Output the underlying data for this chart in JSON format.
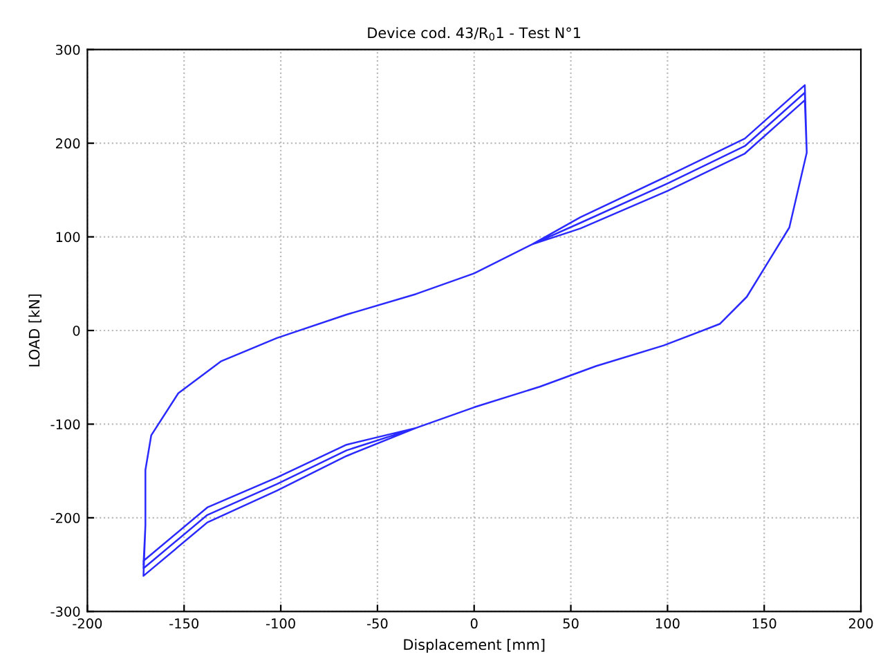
{
  "chart_data": {
    "type": "line",
    "title": "Device cod. 43/R$_{0}$1 - Test N°1",
    "xlabel": "Displacement [mm]",
    "ylabel": "LOAD [kN]",
    "xlim": [
      -200,
      200
    ],
    "xticks": [
      -200,
      -150,
      -100,
      -50,
      0,
      50,
      100,
      150,
      200
    ],
    "ylim": [
      -300,
      300
    ],
    "yticks": [
      -300,
      -200,
      -100,
      0,
      100,
      200,
      300
    ],
    "grid": true,
    "line_style": "solid",
    "marker": "none",
    "series": [
      {
        "color": "#2a2aff",
        "x": [
          -171,
          -170,
          -170,
          -167,
          -153,
          -131,
          -102,
          -66,
          -30,
          0,
          30,
          55,
          100,
          140,
          171,
          172,
          163,
          152,
          141,
          127,
          98,
          63,
          34,
          0,
          -30,
          -66,
          -102,
          -138,
          -171,
          -170,
          -170,
          -167,
          -153,
          -131,
          -102,
          -66,
          -30,
          0,
          30,
          55,
          100,
          140,
          171,
          172,
          163,
          152,
          141,
          127,
          98,
          63,
          34,
          0,
          -30,
          -66,
          -102,
          -138,
          -171,
          -170,
          -170,
          -167,
          -153,
          -131,
          -102,
          -66,
          -30,
          0,
          30,
          55,
          100,
          140,
          171,
          172,
          163,
          152,
          141,
          127,
          98,
          63,
          34,
          0,
          -30,
          -66,
          -102,
          -138,
          -171
        ],
        "values": [
          -250,
          -208,
          -149,
          -112,
          -67,
          -33,
          -8,
          17,
          39,
          61,
          92,
          121,
          165,
          205,
          262,
          190,
          110,
          73,
          36,
          7,
          -16,
          -38,
          -60,
          -82,
          -104,
          -134,
          -171,
          -205,
          -262,
          -208,
          -149,
          -112,
          -67,
          -33,
          -8,
          17,
          39,
          61,
          92,
          115,
          157,
          197,
          254,
          190,
          110,
          73,
          36,
          7,
          -16,
          -38,
          -60,
          -82,
          -104,
          -128,
          -164,
          -197,
          -254,
          -208,
          -149,
          -112,
          -67,
          -33,
          -8,
          17,
          39,
          61,
          92,
          109,
          149,
          189,
          246,
          190,
          110,
          73,
          36,
          7,
          -16,
          -38,
          -60,
          -82,
          -104,
          -122,
          -157,
          -189,
          -246
        ]
      }
    ]
  }
}
